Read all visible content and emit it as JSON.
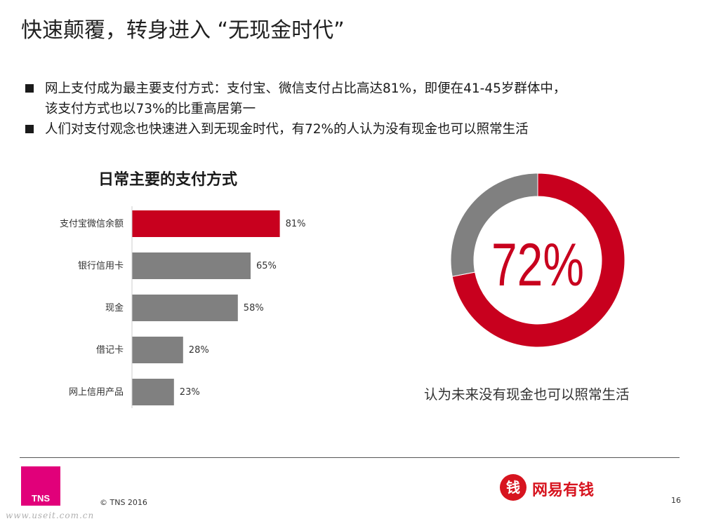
{
  "title": "快速颠覆，转身进入 “无现金时代”",
  "bullets": [
    {
      "line1": "网上支付成为最主要支付方式：支付宝、微信支付占比高达81%，即便在41-45岁群体中，",
      "line2": "该支付方式也以73%的比重高居第一"
    },
    {
      "line1": "人们对支付观念也快速进入到无现金时代，有72%的人认为没有现金也可以照常生活",
      "line2": ""
    }
  ],
  "chart_title": "日常主要的支付方式",
  "chart_data": [
    {
      "type": "bar",
      "orientation": "horizontal",
      "title": "日常主要的支付方式",
      "categories": [
        "支付宝微信余额",
        "银行信用卡",
        "现金",
        "借记卡",
        "网上信用产品"
      ],
      "values": [
        81,
        65,
        58,
        28,
        23
      ],
      "value_labels": [
        "81%",
        "65%",
        "58%",
        "28%",
        "23%"
      ],
      "xlim": [
        0,
        100
      ],
      "grid": false,
      "colors": [
        "#c8001e",
        "#808080",
        "#808080",
        "#808080",
        "#808080"
      ]
    },
    {
      "type": "pie",
      "style": "donut",
      "center_label": "72%",
      "caption": "认为未来没有现金也可以照常生活",
      "slices": [
        {
          "value": 72,
          "color": "#c8001e"
        },
        {
          "value": 28,
          "color": "#808080"
        }
      ]
    }
  ],
  "footer": {
    "logo_text": "TNS",
    "copyright": "© TNS 2016",
    "watermark": "www.useit.com.cn",
    "brand_mark": "钱",
    "brand_name": "网易有钱",
    "page_number": "16"
  },
  "colors": {
    "accent": "#c8001e",
    "neutral": "#808080",
    "tns_pink": "#e1007a",
    "brand_red": "#d7141f"
  }
}
